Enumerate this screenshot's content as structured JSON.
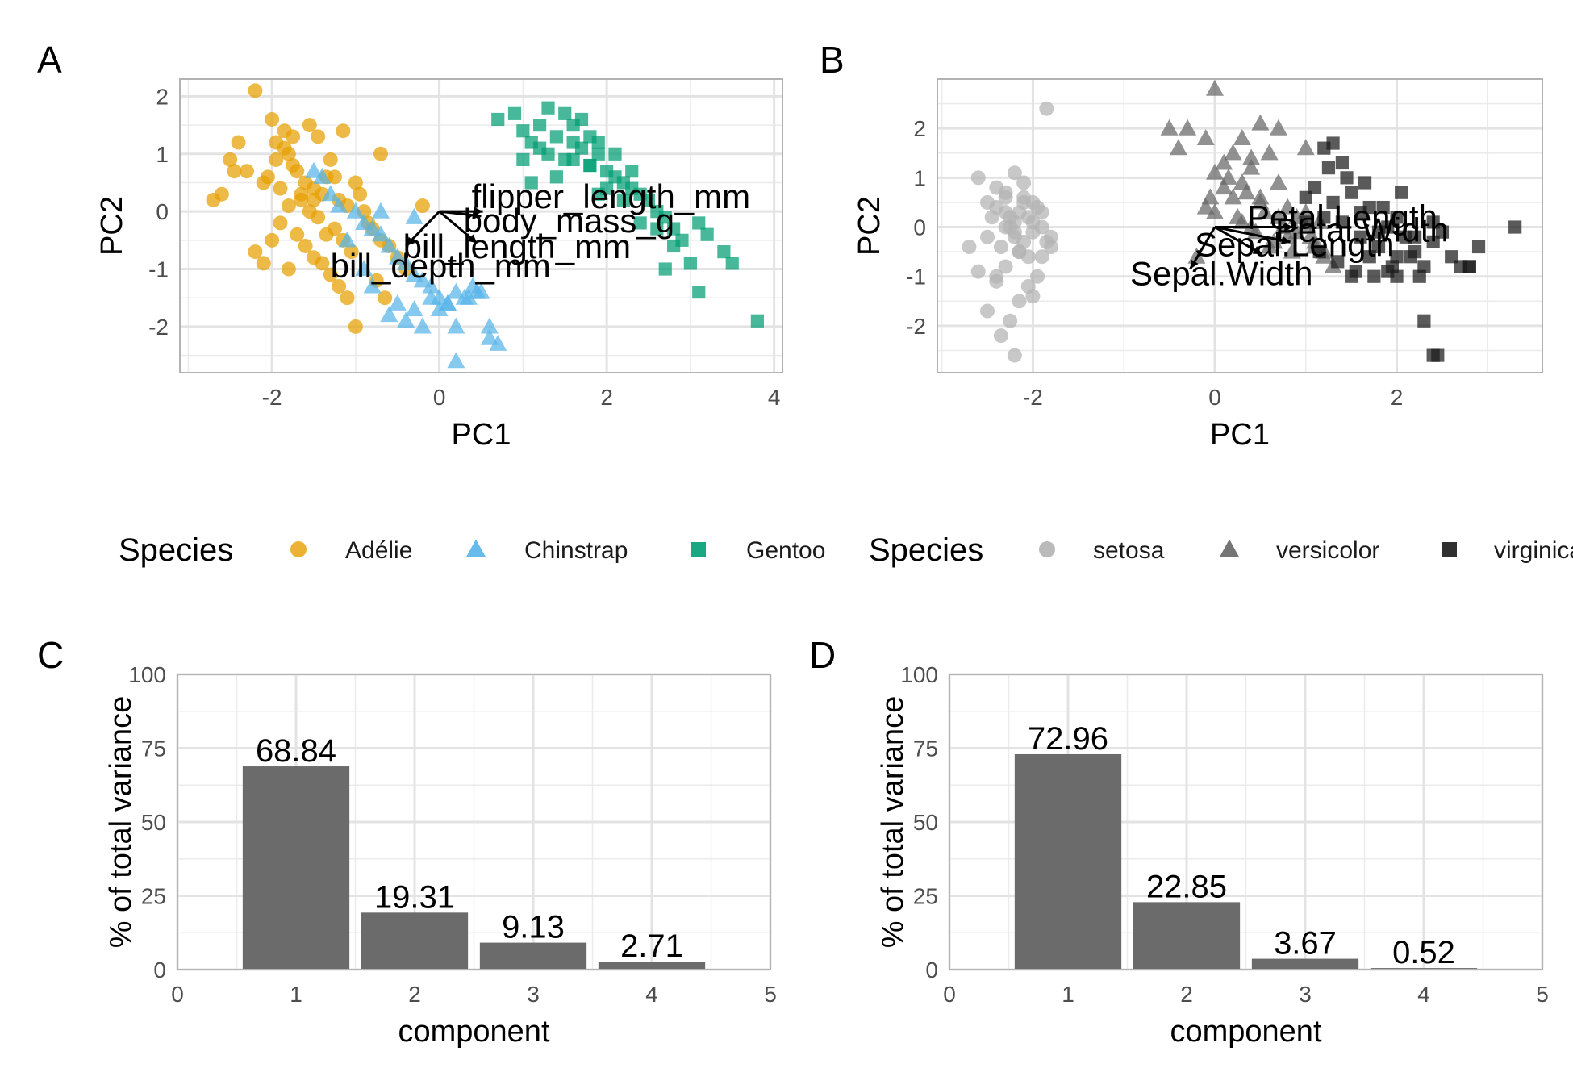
{
  "chart_data": [
    {
      "panel": "A",
      "type": "scatter",
      "xlabel": "PC1",
      "ylabel": "PC2",
      "xlim": [
        -3.1,
        4.1
      ],
      "ylim": [
        -2.8,
        2.3
      ],
      "xticks": [
        -2,
        0,
        2,
        4
      ],
      "yticks": [
        -2,
        -1,
        0,
        1,
        2
      ],
      "grid": true,
      "legend": {
        "title": "Species",
        "position": "bottom"
      },
      "series": [
        {
          "name": "Adélie",
          "shape": "circle",
          "color": "#E69F00",
          "x": [
            -2.2,
            -2.0,
            -1.95,
            -1.85,
            -1.8,
            -1.75,
            -1.7,
            -1.6,
            -1.5,
            -1.4,
            -1.35,
            -1.3,
            -1.2,
            -1.1,
            -1.0,
            -0.95,
            -0.9,
            -0.85,
            -0.8,
            -0.7,
            -0.6,
            -0.5,
            -0.4,
            -2.4,
            -2.5,
            -2.6,
            -2.7,
            -2.3,
            -2.1,
            -1.9,
            -1.65,
            -1.55,
            -1.45,
            -1.25,
            -1.15,
            -1.05,
            -0.75,
            -0.65,
            -1.7,
            -1.6,
            -1.5,
            -1.8,
            -1.9,
            -2.0,
            -1.4,
            -1.3,
            -1.2,
            -1.1,
            -1.0,
            -2.2,
            -2.1,
            -1.75,
            -1.85,
            -1.95,
            -2.05,
            -1.55,
            -1.45,
            -1.65,
            -2.45,
            -0.7,
            -1.35,
            -1.8,
            -0.2,
            -1.5,
            -1.25,
            -1.15
          ],
          "y": [
            2.1,
            1.6,
            1.2,
            1.4,
            1.0,
            0.8,
            0.7,
            0.5,
            0.4,
            0.3,
            0.6,
            0.9,
            0.2,
            0.1,
            0.5,
            0.3,
            0.0,
            -0.2,
            -0.3,
            -0.5,
            -0.6,
            -0.8,
            -1.0,
            1.2,
            0.9,
            0.3,
            0.2,
            0.7,
            0.5,
            0.4,
            0.2,
            0.0,
            -0.1,
            -0.3,
            -0.5,
            -0.7,
            -1.2,
            -1.5,
            -0.4,
            -0.6,
            -0.8,
            0.1,
            -0.2,
            -0.5,
            -0.9,
            -1.1,
            -1.3,
            -1.5,
            -2.0,
            -0.7,
            -0.9,
            1.3,
            1.1,
            0.9,
            0.6,
            1.5,
            1.3,
            0.3,
            0.7,
            1.0,
            -0.4,
            -1.0,
            0.1,
            0.2,
            0.6,
            1.4
          ]
        },
        {
          "name": "Chinstrap",
          "shape": "triangle",
          "color": "#56B4E9",
          "x": [
            -1.4,
            -1.3,
            -1.2,
            -1.0,
            -0.9,
            -0.8,
            -0.7,
            -0.6,
            -0.5,
            -0.4,
            -0.3,
            -0.2,
            -0.1,
            0.0,
            0.1,
            0.2,
            0.3,
            0.4,
            0.5,
            0.6,
            0.7,
            -0.6,
            -0.5,
            -0.4,
            -0.3,
            -0.2,
            -0.1,
            0.0,
            0.1,
            0.2,
            -0.9,
            -0.8,
            -1.1,
            -1.5,
            0.2,
            0.6,
            -0.7,
            -0.3,
            0.45,
            0.35
          ],
          "y": [
            0.6,
            0.3,
            0.1,
            0.0,
            -0.2,
            -0.3,
            -0.4,
            -0.6,
            -0.8,
            -0.9,
            -1.1,
            -1.2,
            -1.3,
            -1.5,
            -1.6,
            -1.4,
            -1.5,
            -1.3,
            -1.4,
            -2.2,
            -2.3,
            -1.8,
            -1.6,
            -1.9,
            -1.7,
            -2.0,
            -1.5,
            -1.7,
            -1.6,
            -2.0,
            -1.0,
            -1.3,
            -0.5,
            0.7,
            -2.6,
            -2.0,
            0.0,
            -0.1,
            -1.4,
            -1.5
          ]
        },
        {
          "name": "Gentoo",
          "shape": "square",
          "color": "#009E73",
          "x": [
            0.7,
            0.9,
            1.0,
            1.1,
            1.2,
            1.3,
            1.4,
            1.5,
            1.6,
            1.7,
            1.8,
            1.9,
            2.0,
            2.1,
            2.2,
            2.3,
            2.4,
            2.5,
            2.6,
            2.7,
            2.8,
            2.9,
            3.0,
            3.1,
            3.2,
            3.4,
            3.5,
            3.8,
            1.3,
            1.5,
            1.7,
            1.9,
            2.1,
            2.3,
            1.1,
            1.4,
            1.6,
            1.8,
            2.0,
            2.2,
            2.4,
            2.6,
            2.8,
            1.2,
            1.0,
            1.9,
            2.7,
            3.1,
            1.6,
            1.8
          ],
          "y": [
            1.6,
            1.7,
            1.4,
            1.2,
            1.1,
            1.0,
            1.3,
            0.9,
            1.5,
            1.1,
            0.8,
            1.0,
            0.7,
            0.6,
            0.5,
            0.4,
            0.3,
            0.2,
            0.0,
            -0.1,
            -0.3,
            -0.5,
            -0.9,
            -1.4,
            -0.4,
            -0.7,
            -0.9,
            -1.9,
            1.8,
            1.7,
            1.6,
            1.2,
            1.0,
            0.7,
            0.5,
            0.6,
            0.9,
            0.8,
            0.4,
            0.2,
            -0.2,
            -0.3,
            -0.6,
            1.5,
            0.9,
            0.3,
            -1.0,
            -0.2,
            1.2,
            1.3
          ]
        }
      ],
      "loadings": [
        {
          "label": "flipper_length_mm",
          "x": 0.52,
          "y": 0.0
        },
        {
          "label": "body_mass_g",
          "x": 0.5,
          "y": -0.08
        },
        {
          "label": "bill_length_mm",
          "x": 0.45,
          "y": -0.55
        },
        {
          "label": "bill_depth_mm",
          "x": -0.4,
          "y": -0.6
        }
      ]
    },
    {
      "panel": "B",
      "type": "scatter",
      "xlabel": "PC1",
      "ylabel": "PC2",
      "xlim": [
        -3.05,
        3.6
      ],
      "ylim": [
        -2.95,
        3.0
      ],
      "xticks": [
        -2,
        0,
        2
      ],
      "yticks": [
        -2,
        -1,
        0,
        1,
        2
      ],
      "grid": true,
      "legend": {
        "title": "Species",
        "position": "bottom"
      },
      "series": [
        {
          "name": "setosa",
          "shape": "circle",
          "color": "#b3b3b3",
          "x": [
            -2.7,
            -2.6,
            -2.5,
            -2.4,
            -2.3,
            -2.25,
            -2.2,
            -2.15,
            -2.1,
            -2.05,
            -2.0,
            -1.95,
            -1.9,
            -1.85,
            -1.8,
            -2.4,
            -2.3,
            -2.2,
            -2.1,
            -2.0,
            -2.5,
            -2.35,
            -2.25,
            -2.15,
            -2.05,
            -2.45,
            -2.3,
            -2.2,
            -2.1,
            -2.0,
            -1.9,
            -2.6,
            -2.4,
            -2.2,
            -2.35,
            -2.15,
            -1.85,
            -2.5,
            -2.25,
            -2.05,
            -2.4,
            -2.2,
            -1.9,
            -2.3,
            -2.1,
            -1.95,
            -2.15,
            -2.3,
            -1.8,
            -2.0
          ],
          "y": [
            -0.4,
            1.0,
            0.5,
            0.8,
            0.3,
            0.0,
            -0.2,
            -0.5,
            0.6,
            0.2,
            -0.1,
            0.4,
            -0.6,
            -0.3,
            -0.4,
            -1.1,
            -0.8,
            0.1,
            0.5,
            -1.4,
            -1.7,
            -2.2,
            -1.9,
            -1.5,
            -1.2,
            0.2,
            0.7,
            1.1,
            0.9,
            0.5,
            0.0,
            -0.9,
            -1.0,
            -2.6,
            -0.4,
            0.3,
            2.4,
            -0.2,
            0.2,
            -0.6,
            0.4,
            -0.1,
            0.3,
            0.6,
            -0.3,
            -1.0,
            -0.5,
            0.0,
            -0.2,
            0.1
          ]
        },
        {
          "name": "versicolor",
          "shape": "triangle",
          "color": "#666666",
          "x": [
            -0.5,
            -0.4,
            -0.3,
            -0.1,
            0.0,
            0.1,
            0.2,
            0.3,
            0.4,
            0.5,
            0.6,
            0.7,
            0.8,
            0.9,
            1.0,
            1.1,
            1.2,
            1.3,
            0.0,
            0.2,
            0.4,
            0.6,
            0.8,
            1.0,
            1.2,
            0.1,
            0.3,
            0.5,
            0.7,
            0.9,
            1.1,
            0.15,
            0.35,
            0.55,
            0.75,
            1.05,
            -0.1,
            0.25,
            0.45,
            0.65,
            0.85,
            1.15,
            -0.05,
            0.4,
            0.0,
            0.7,
            0.3,
            1.0,
            0.5,
            -0.2
          ],
          "y": [
            2.0,
            1.6,
            2.0,
            1.8,
            1.1,
            0.8,
            1.5,
            1.8,
            1.2,
            2.1,
            1.5,
            0.9,
            0.4,
            0.2,
            0.0,
            -0.3,
            -0.6,
            -0.8,
            0.3,
            0.6,
            0.0,
            -0.4,
            -0.2,
            0.3,
            -0.5,
            1.3,
            0.9,
            0.5,
            0.2,
            -0.1,
            -0.4,
            1.0,
            0.7,
            0.3,
            0.0,
            -0.2,
            0.4,
            0.2,
            -0.1,
            -0.3,
            -0.5,
            0.1,
            0.6,
            1.4,
            2.8,
            2.0,
            0.1,
            1.6,
            0.6,
            -0.6
          ]
        },
        {
          "name": "virginica",
          "shape": "square",
          "color": "#1a1a1a",
          "x": [
            1.0,
            1.1,
            1.2,
            1.3,
            1.4,
            1.5,
            1.6,
            1.7,
            1.8,
            1.9,
            2.0,
            2.1,
            2.2,
            2.3,
            2.4,
            2.5,
            2.6,
            2.7,
            2.8,
            2.9,
            3.3,
            1.2,
            1.4,
            1.6,
            1.8,
            2.0,
            2.2,
            2.4,
            1.15,
            1.35,
            1.55,
            1.75,
            1.95,
            2.15,
            1.25,
            1.45,
            1.65,
            1.85,
            2.05,
            2.25,
            2.3,
            2.4,
            2.45,
            1.3,
            1.5,
            1.7,
            1.9,
            2.0,
            2.8,
            1.0
          ],
          "y": [
            0.6,
            0.8,
            1.6,
            1.7,
            1.3,
            0.7,
            0.3,
            0.4,
            -0.1,
            0.0,
            0.2,
            -0.2,
            -0.5,
            -0.8,
            -0.3,
            -0.1,
            -0.6,
            -0.8,
            -0.8,
            -0.4,
            0.0,
            0.2,
            0.1,
            -0.2,
            -0.4,
            -0.6,
            -0.2,
            0.1,
            -0.5,
            -0.7,
            -0.9,
            -1.0,
            -0.8,
            -0.6,
            1.2,
            1.0,
            0.9,
            0.4,
            0.7,
            -1.0,
            -1.9,
            -2.6,
            -2.6,
            0.5,
            -1.0,
            -0.6,
            -0.9,
            -1.0,
            -0.8,
            0.1
          ]
        }
      ],
      "loadings": [
        {
          "label": "Petal.Length",
          "x": 0.86,
          "y": 0.0
        },
        {
          "label": "Petal.Width",
          "x": 0.83,
          "y": -0.3
        },
        {
          "label": "Sepal.Length",
          "x": 0.52,
          "y": -0.55
        },
        {
          "label": "Sepal.Width",
          "x": -0.27,
          "y": -0.85
        }
      ]
    },
    {
      "panel": "C",
      "type": "bar",
      "xlabel": "component",
      "ylabel": "% of total variance",
      "xlim": [
        0,
        5
      ],
      "ylim": [
        0,
        100
      ],
      "xticks": [
        0,
        1,
        2,
        3,
        4,
        5
      ],
      "yticks": [
        0,
        25,
        50,
        75,
        100
      ],
      "grid": true,
      "categories": [
        1,
        2,
        3,
        4
      ],
      "values": [
        68.84,
        19.31,
        9.13,
        2.71
      ],
      "labels": [
        "68.84",
        "19.31",
        "9.13",
        "2.71"
      ],
      "color": "#6b6b6b"
    },
    {
      "panel": "D",
      "type": "bar",
      "xlabel": "component",
      "ylabel": "% of total variance",
      "xlim": [
        0,
        5
      ],
      "ylim": [
        0,
        100
      ],
      "xticks": [
        0,
        1,
        2,
        3,
        4,
        5
      ],
      "yticks": [
        0,
        25,
        50,
        75,
        100
      ],
      "grid": true,
      "categories": [
        1,
        2,
        3,
        4
      ],
      "values": [
        72.96,
        22.85,
        3.67,
        0.52
      ],
      "labels": [
        "72.96",
        "22.85",
        "3.67",
        "0.52"
      ],
      "color": "#6b6b6b"
    }
  ],
  "legends": [
    {
      "title": "Species",
      "items": [
        {
          "label": "Adélie",
          "shape": "circle",
          "color": "#E69F00"
        },
        {
          "label": "Chinstrap",
          "shape": "triangle",
          "color": "#56B4E9"
        },
        {
          "label": "Gentoo",
          "shape": "square",
          "color": "#009E73"
        }
      ]
    },
    {
      "title": "Species",
      "items": [
        {
          "label": "setosa",
          "shape": "circle",
          "color": "#b3b3b3"
        },
        {
          "label": "versicolor",
          "shape": "triangle",
          "color": "#666666"
        },
        {
          "label": "virginica",
          "shape": "square",
          "color": "#1a1a1a"
        }
      ]
    }
  ]
}
